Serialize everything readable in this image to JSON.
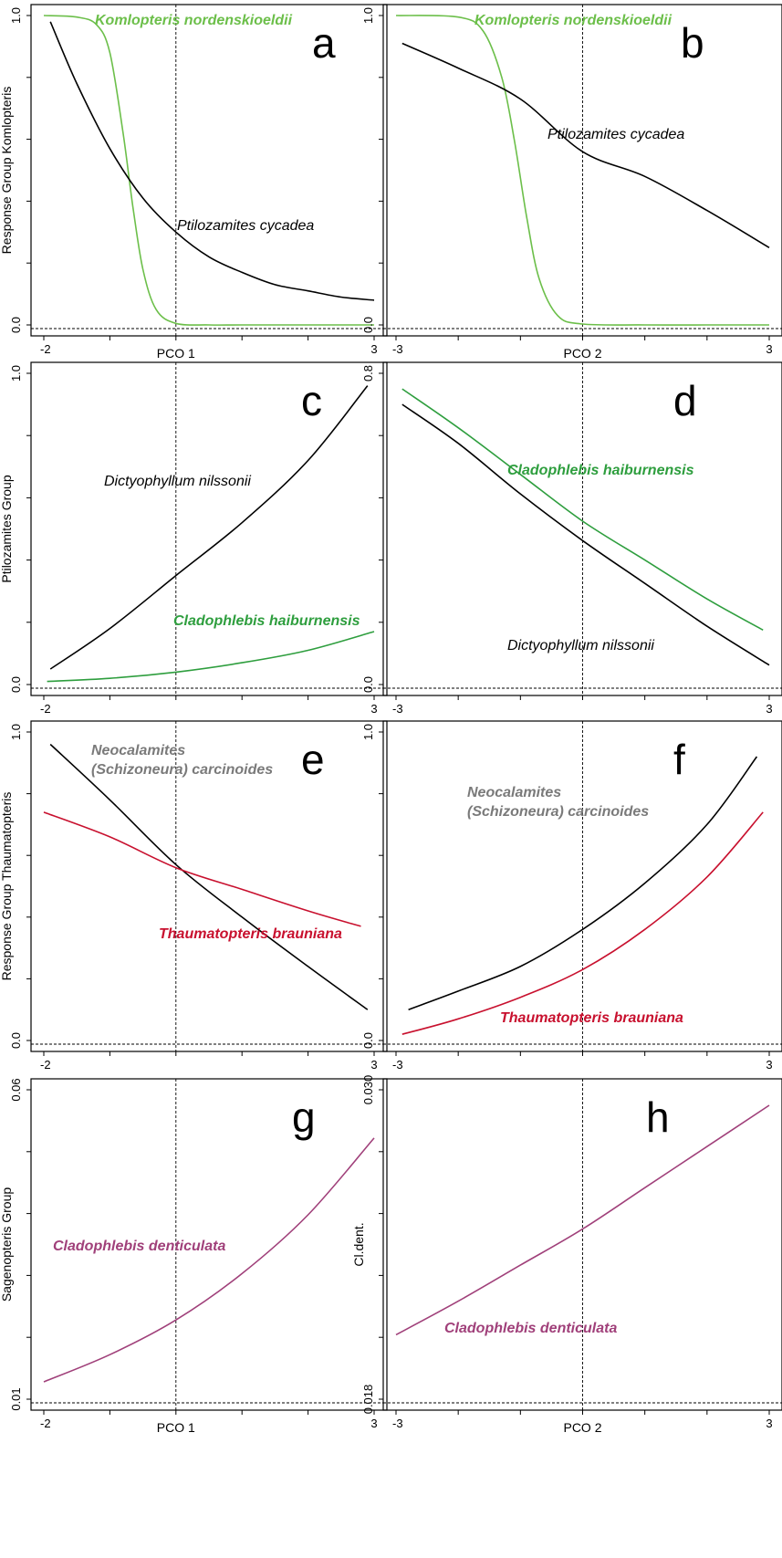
{
  "chart_data": [
    {
      "panel": "a",
      "type": "line",
      "xlabel": "PCO 1",
      "ylabel": "Response Group Komlopteris",
      "xlim": [
        -2,
        3
      ],
      "ylim": [
        0,
        1
      ],
      "xticklabels": [
        "-2",
        "3"
      ],
      "yticklabels": [
        "0.0",
        "1.0"
      ],
      "series": [
        {
          "name": "Komlopteris nordenskioeldii",
          "color": "#6cbf4a",
          "x": [
            -2,
            -1.5,
            -1.2,
            -1.0,
            -0.8,
            -0.65,
            -0.5,
            -0.3,
            0,
            0.5,
            1,
            2,
            3
          ],
          "y": [
            1.0,
            0.995,
            0.97,
            0.88,
            0.62,
            0.38,
            0.18,
            0.05,
            0.005,
            0.0,
            0.0,
            0.0,
            0.0
          ]
        },
        {
          "name": "Ptilozamites cycadea",
          "color": "#000000",
          "x": [
            -1.9,
            -1.5,
            -1,
            -0.5,
            0,
            0.5,
            1,
            1.5,
            2,
            2.5,
            3
          ],
          "y": [
            0.98,
            0.78,
            0.57,
            0.41,
            0.3,
            0.22,
            0.17,
            0.13,
            0.11,
            0.09,
            0.08
          ]
        }
      ]
    },
    {
      "panel": "b",
      "type": "line",
      "xlabel": "PCO 2",
      "ylabel": "",
      "xlim": [
        -3,
        3
      ],
      "ylim": [
        0,
        1
      ],
      "xticklabels": [
        "-3",
        "3"
      ],
      "yticklabels": [
        "0.0",
        "1.0"
      ],
      "series": [
        {
          "name": "Komlopteris nordenskioeldii",
          "color": "#6cbf4a",
          "x": [
            -3,
            -2,
            -1.6,
            -1.3,
            -1.1,
            -0.9,
            -0.7,
            -0.4,
            0,
            1,
            2,
            3
          ],
          "y": [
            1.0,
            0.995,
            0.95,
            0.8,
            0.6,
            0.35,
            0.15,
            0.03,
            0.003,
            0.0,
            0.0,
            0.0
          ]
        },
        {
          "name": "Ptilozamites cycadea",
          "color": "#000000",
          "x": [
            -2.9,
            -2,
            -1,
            0,
            1,
            2,
            3
          ],
          "y": [
            0.91,
            0.83,
            0.73,
            0.56,
            0.48,
            0.37,
            0.25
          ]
        }
      ]
    },
    {
      "panel": "c",
      "type": "line",
      "xlabel": "",
      "ylabel": "Ptilozamites Group",
      "xlim": [
        -2,
        3
      ],
      "ylim": [
        0,
        1
      ],
      "xticklabels": [
        "-2",
        "3"
      ],
      "yticklabels": [
        "0.0",
        "1.0"
      ],
      "series": [
        {
          "name": "Dictyophyllum nilssonii",
          "color": "#000000",
          "x": [
            -1.9,
            -1,
            0,
            1,
            2,
            2.9
          ],
          "y": [
            0.05,
            0.18,
            0.35,
            0.52,
            0.72,
            0.96
          ]
        },
        {
          "name": "Cladophlebis haiburnensis",
          "color": "#2e9e3e",
          "x": [
            -1.95,
            -1,
            0,
            1,
            2,
            3
          ],
          "y": [
            0.01,
            0.02,
            0.04,
            0.07,
            0.11,
            0.17
          ]
        }
      ]
    },
    {
      "panel": "d",
      "type": "line",
      "xlabel": "",
      "ylabel": "",
      "xlim": [
        -3,
        3
      ],
      "ylim": [
        0,
        0.8
      ],
      "xticklabels": [
        "-3",
        "3"
      ],
      "yticklabels": [
        "0.0",
        "0.8"
      ],
      "series": [
        {
          "name": "Cladophlebis haiburnensis",
          "color": "#2e9e3e",
          "x": [
            -2.9,
            -2,
            -1,
            0,
            1,
            2,
            2.9
          ],
          "y": [
            0.76,
            0.66,
            0.54,
            0.42,
            0.32,
            0.22,
            0.14
          ]
        },
        {
          "name": "Dictyophyllum nilssonii",
          "color": "#000000",
          "x": [
            -2.9,
            -2,
            -1,
            0,
            1,
            2,
            3
          ],
          "y": [
            0.72,
            0.62,
            0.49,
            0.37,
            0.26,
            0.15,
            0.05
          ]
        }
      ]
    },
    {
      "panel": "e",
      "type": "line",
      "xlabel": "",
      "ylabel": "Response Group Thaumatopteris",
      "xlim": [
        -2,
        3
      ],
      "ylim": [
        0,
        1
      ],
      "xticklabels": [
        "-2",
        "3"
      ],
      "yticklabels": [
        "0.0",
        "1.0"
      ],
      "series": [
        {
          "name": "Neocalamites (Schizoneura) carcinoides",
          "color": "#000000",
          "x": [
            -1.9,
            -1,
            0,
            1,
            2,
            2.9
          ],
          "y": [
            0.96,
            0.78,
            0.57,
            0.4,
            0.24,
            0.1
          ]
        },
        {
          "name": "Thaumatopteris brauniana",
          "color": "#c8102e",
          "x": [
            -2,
            -1,
            0,
            1,
            2,
            2.8
          ],
          "y": [
            0.74,
            0.66,
            0.56,
            0.49,
            0.42,
            0.37
          ]
        }
      ]
    },
    {
      "panel": "f",
      "type": "line",
      "xlabel": "",
      "ylabel": "",
      "xlim": [
        -3,
        3
      ],
      "ylim": [
        0,
        1
      ],
      "xticklabels": [
        "-3",
        "3"
      ],
      "yticklabels": [
        "0.0",
        "1.0"
      ],
      "series": [
        {
          "name": "Neocalamites (Schizoneura) carcinoides",
          "color": "#000000",
          "x": [
            -2.8,
            -2,
            -1,
            0,
            1,
            2,
            2.8
          ],
          "y": [
            0.1,
            0.16,
            0.24,
            0.36,
            0.51,
            0.7,
            0.92
          ]
        },
        {
          "name": "Thaumatopteris brauniana",
          "color": "#c8102e",
          "x": [
            -2.9,
            -2,
            -1,
            0,
            1,
            2,
            2.9
          ],
          "y": [
            0.02,
            0.07,
            0.14,
            0.23,
            0.36,
            0.53,
            0.74
          ]
        }
      ]
    },
    {
      "panel": "g",
      "type": "line",
      "xlabel": "PCO 1",
      "ylabel": "Sagenopteris Group",
      "xlim": [
        -2,
        3
      ],
      "ylim": [
        0.01,
        0.06
      ],
      "xticklabels": [
        "-2",
        "3"
      ],
      "yticklabels": [
        "0.01",
        "0.06"
      ],
      "series": [
        {
          "name": "Cladophlebis denticulata",
          "color": "#a0407a",
          "x": [
            -2,
            -1,
            0,
            1,
            2,
            3
          ],
          "y": [
            0.0128,
            0.0172,
            0.0228,
            0.0303,
            0.0398,
            0.0522
          ]
        }
      ]
    },
    {
      "panel": "h",
      "type": "line",
      "xlabel": "PCO 2",
      "ylabel": "Cl.dent.",
      "xlim": [
        -3,
        3
      ],
      "ylim": [
        0.018,
        0.03
      ],
      "xticklabels": [
        "-3",
        "3"
      ],
      "yticklabels": [
        "0.018",
        "0.030"
      ],
      "series": [
        {
          "name": "Cladophlebis denticulata",
          "color": "#a0407a",
          "x": [
            -3,
            -2,
            -1,
            0,
            1,
            2,
            3
          ],
          "y": [
            0.0205,
            0.0218,
            0.0232,
            0.0246,
            0.0262,
            0.0278,
            0.0294
          ]
        }
      ]
    }
  ]
}
